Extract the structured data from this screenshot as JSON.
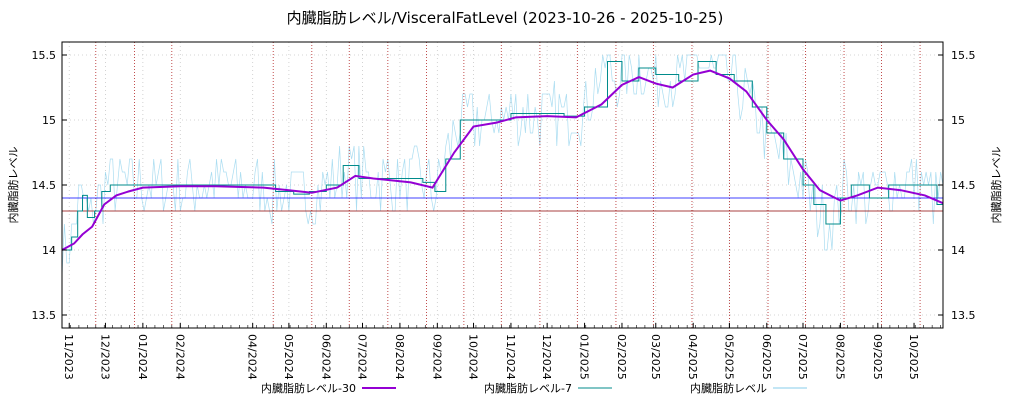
{
  "chart_data": {
    "type": "line",
    "title": "内臓脂肪レベル/VisceralFatLevel (2023-10-26 - 2025-10-25)",
    "ylabel_left": "内臓脂肪レベル",
    "ylabel_right": "内臓脂肪レベル",
    "x_range": [
      "2023-10-26",
      "2025-10-25"
    ],
    "ylim": [
      13.4,
      15.6
    ],
    "y_ticks": [
      "13.5",
      "14",
      "14.5",
      "15",
      "15.5"
    ],
    "x_ticks": [
      {
        "date": "2023-11-01",
        "label": "11/2023"
      },
      {
        "date": "2023-12-01",
        "label": "12/2023"
      },
      {
        "date": "2024-01-01",
        "label": "01/2024"
      },
      {
        "date": "2024-02-01",
        "label": "02/2024"
      },
      {
        "date": "2024-04-01",
        "label": "04/2024"
      },
      {
        "date": "2024-05-01",
        "label": "05/2024"
      },
      {
        "date": "2024-06-01",
        "label": "06/2024"
      },
      {
        "date": "2024-07-01",
        "label": "07/2024"
      },
      {
        "date": "2024-08-01",
        "label": "08/2024"
      },
      {
        "date": "2024-09-01",
        "label": "09/2024"
      },
      {
        "date": "2024-10-01",
        "label": "10/2024"
      },
      {
        "date": "2024-11-01",
        "label": "11/2024"
      },
      {
        "date": "2024-12-01",
        "label": "12/2024"
      },
      {
        "date": "2025-01-01",
        "label": "01/2025"
      },
      {
        "date": "2025-02-01",
        "label": "02/2025"
      },
      {
        "date": "2025-03-01",
        "label": "03/2025"
      },
      {
        "date": "2025-04-01",
        "label": "04/2025"
      },
      {
        "date": "2025-05-01",
        "label": "05/2025"
      },
      {
        "date": "2025-06-01",
        "label": "06/2025"
      },
      {
        "date": "2025-07-01",
        "label": "07/2025"
      },
      {
        "date": "2025-08-01",
        "label": "08/2025"
      },
      {
        "date": "2025-09-01",
        "label": "09/2025"
      },
      {
        "date": "2025-10-01",
        "label": "10/2025"
      }
    ],
    "red_vlines": [
      "2023-11-23",
      "2023-12-25",
      "2024-01-25",
      "2024-04-18",
      "2024-05-20",
      "2024-06-20",
      "2024-07-22",
      "2024-08-23",
      "2024-09-23",
      "2024-10-24",
      "2024-11-25",
      "2024-12-26",
      "2025-01-27",
      "2025-02-27",
      "2025-03-31",
      "2025-05-01",
      "2025-06-02",
      "2025-07-03",
      "2025-08-04",
      "2025-09-04",
      "2025-10-06"
    ],
    "hlines": [
      {
        "y": 14.4,
        "color": "#0000ff"
      },
      {
        "y": 14.3,
        "color": "#8b0000"
      }
    ],
    "grid": true,
    "legend_position": "bottom",
    "series": [
      {
        "name": "内臓脂肪レベル-30",
        "color": "#9400d3",
        "x": [
          "2023-10-26",
          "2023-11-05",
          "2023-11-12",
          "2023-11-20",
          "2023-11-30",
          "2023-12-10",
          "2023-12-20",
          "2024-01-01",
          "2024-02-01",
          "2024-03-01",
          "2024-04-10",
          "2024-05-01",
          "2024-05-20",
          "2024-06-10",
          "2024-06-25",
          "2024-07-10",
          "2024-08-10",
          "2024-08-28",
          "2024-09-15",
          "2024-10-01",
          "2024-10-20",
          "2024-11-05",
          "2024-12-01",
          "2024-12-25",
          "2025-01-15",
          "2025-02-01",
          "2025-02-15",
          "2025-03-01",
          "2025-03-15",
          "2025-04-01",
          "2025-04-15",
          "2025-05-01",
          "2025-05-15",
          "2025-06-01",
          "2025-06-15",
          "2025-07-01",
          "2025-07-15",
          "2025-08-01",
          "2025-08-15",
          "2025-09-01",
          "2025-09-20",
          "2025-10-10",
          "2025-10-25"
        ],
        "y": [
          14.0,
          14.05,
          14.12,
          14.18,
          14.35,
          14.42,
          14.45,
          14.48,
          14.49,
          14.49,
          14.48,
          14.46,
          14.44,
          14.48,
          14.57,
          14.55,
          14.52,
          14.48,
          14.75,
          14.95,
          14.98,
          15.02,
          15.03,
          15.02,
          15.12,
          15.27,
          15.33,
          15.28,
          15.25,
          15.35,
          15.38,
          15.32,
          15.22,
          15.0,
          14.85,
          14.62,
          14.46,
          14.38,
          14.42,
          14.48,
          14.46,
          14.42,
          14.36
        ]
      },
      {
        "name": "内臓脂肪レベル-7",
        "color": "#008b8b",
        "x": [
          "2023-10-26",
          "2023-11-03",
          "2023-11-08",
          "2023-11-12",
          "2023-11-16",
          "2023-11-22",
          "2023-11-28",
          "2023-12-05",
          "2023-12-15",
          "2024-01-10",
          "2024-02-20",
          "2024-04-05",
          "2024-04-20",
          "2024-05-05",
          "2024-05-18",
          "2024-06-01",
          "2024-06-15",
          "2024-06-28",
          "2024-07-15",
          "2024-08-20",
          "2024-08-30",
          "2024-09-08",
          "2024-09-20",
          "2024-10-05",
          "2024-11-01",
          "2024-12-15",
          "2025-01-01",
          "2025-01-20",
          "2025-02-01",
          "2025-02-15",
          "2025-03-01",
          "2025-03-20",
          "2025-04-05",
          "2025-04-20",
          "2025-05-05",
          "2025-05-20",
          "2025-06-01",
          "2025-06-15",
          "2025-07-01",
          "2025-07-10",
          "2025-07-20",
          "2025-08-01",
          "2025-08-10",
          "2025-08-25",
          "2025-09-10",
          "2025-09-25",
          "2025-10-10",
          "2025-10-20",
          "2025-10-25"
        ],
        "y": [
          14.0,
          14.1,
          14.3,
          14.42,
          14.25,
          14.3,
          14.45,
          14.5,
          14.5,
          14.5,
          14.5,
          14.5,
          14.45,
          14.43,
          14.45,
          14.5,
          14.65,
          14.55,
          14.55,
          14.52,
          14.45,
          14.7,
          15.0,
          15.0,
          15.05,
          15.03,
          15.1,
          15.45,
          15.3,
          15.4,
          15.35,
          15.3,
          15.45,
          15.35,
          15.3,
          15.1,
          14.9,
          14.7,
          14.5,
          14.35,
          14.2,
          14.4,
          14.5,
          14.4,
          14.5,
          14.5,
          14.5,
          14.35,
          14.5
        ]
      },
      {
        "name": "内臓脂肪レベル",
        "color": "#87ceeb",
        "values_desc": "daily raw readings"
      }
    ]
  }
}
